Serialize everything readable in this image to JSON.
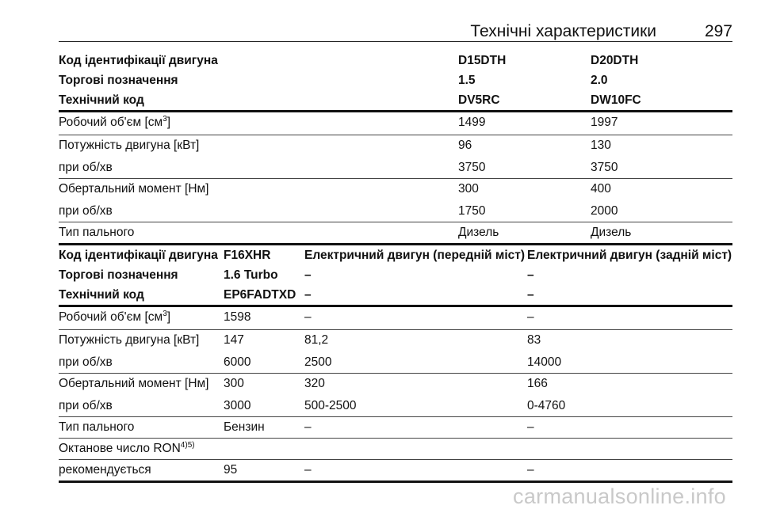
{
  "header": {
    "title": "Технічні характеристики",
    "page_number": "297"
  },
  "table1": {
    "header_rows": [
      [
        "Код ідентифікації двигуна",
        "D15DTH",
        "D20DTH"
      ],
      [
        "Торгові позначення",
        "1.5",
        "2.0"
      ],
      [
        "Технічний код",
        "DV5RC",
        "DW10FC"
      ]
    ],
    "volume_row": {
      "label": "Робочий об'єм [см",
      "sup": "3",
      "suffix": "]",
      "v1": "1499",
      "v2": "1997"
    },
    "rows": [
      [
        "Потужність двигуна [кВт]",
        "96",
        "130"
      ],
      [
        "при об/хв",
        "3750",
        "3750"
      ],
      [
        "Обертальний момент [Нм]",
        "300",
        "400"
      ],
      [
        "при об/хв",
        "1750",
        "2000"
      ],
      [
        "Тип пального",
        "Дизель",
        "Дизель"
      ]
    ]
  },
  "table2": {
    "header_rows": [
      [
        "Код ідентифікації двигуна",
        "F16XHR",
        "Електричний двигун (передній міст)",
        "Електричний двигун (задній міст)"
      ],
      [
        "Торгові позначення",
        "1.6 Turbo",
        "–",
        "–"
      ],
      [
        "Технічний код",
        "EP6FADTXD",
        "–",
        "–"
      ]
    ],
    "volume_row": {
      "label": "Робочий об'єм [см",
      "sup": "3",
      "suffix": "]",
      "v1": "1598",
      "v2": "–",
      "v3": "–"
    },
    "rows": [
      [
        "Потужність двигуна [кВт]",
        "147",
        "81,2",
        "83"
      ],
      [
        "при об/хв",
        "6000",
        "2500",
        "14000"
      ],
      [
        "Обертальний момент [Нм]",
        "300",
        "320",
        "166"
      ],
      [
        "при об/хв",
        "3000",
        "500-2500",
        "0-4760"
      ],
      [
        "Тип пального",
        "Бензин",
        "–",
        "–"
      ]
    ],
    "octane_row": {
      "label": "Октанове число RON",
      "sup": "4)5)"
    },
    "recommend_row": [
      "рекомендується",
      "95",
      "–",
      "–"
    ]
  },
  "watermark": "carmanualsonline.info"
}
